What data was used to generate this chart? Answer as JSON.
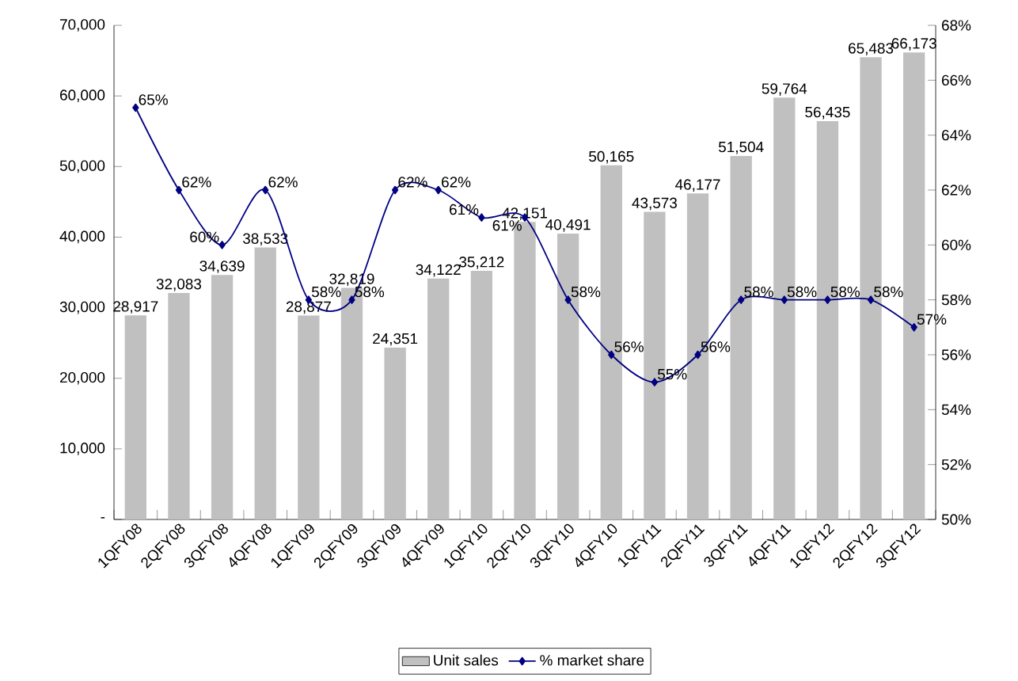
{
  "chart_data": {
    "type": "bar",
    "categories": [
      "1QFY08",
      "2QFY08",
      "3QFY08",
      "4QFY08",
      "1QFY09",
      "2QFY09",
      "3QFY09",
      "4QFY09",
      "1QFY10",
      "2QFY10",
      "3QFY10",
      "4QFY10",
      "1QFY11",
      "2QFY11",
      "3QFY11",
      "4QFY11",
      "1QFY12",
      "2QFY12",
      "3QFY12"
    ],
    "series": [
      {
        "name": "Unit sales",
        "color": "#c0c0c0",
        "values": [
          28917,
          32083,
          34639,
          38533,
          28877,
          32819,
          24351,
          34122,
          35212,
          42151,
          40491,
          50165,
          43573,
          46177,
          51504,
          59764,
          56435,
          65483,
          66173
        ],
        "value_labels": [
          "28,917",
          "32,083",
          "34,639",
          "38,533",
          "28,877",
          "32,819",
          "24,351",
          "34,122",
          "35,212",
          "42,151",
          "40,491",
          "50,165",
          "43,573",
          "46,177",
          "51,504",
          "59,764",
          "56,435",
          "65,483",
          "66,173"
        ]
      },
      {
        "name": "% market share",
        "type": "line",
        "axis": "y2",
        "color": "#000080",
        "marker": "diamond",
        "line_style": "solid",
        "values": [
          65,
          62,
          60,
          62,
          58,
          58,
          62,
          62,
          61,
          61,
          58,
          56,
          55,
          56,
          58,
          58,
          58,
          58,
          57
        ],
        "value_labels": [
          "65%",
          "62%",
          "60%",
          "62%",
          "58%",
          "58%",
          "62%",
          "62%",
          "61%",
          "61%",
          "58%",
          "56%",
          "55%",
          "56%",
          "58%",
          "58%",
          "58%",
          "58%",
          "57%"
        ]
      }
    ],
    "ylim": [
      0,
      70000
    ],
    "yticks": [
      {
        "value": 0,
        "label": "-"
      },
      {
        "value": 10000,
        "label": "10,000"
      },
      {
        "value": 20000,
        "label": "20,000"
      },
      {
        "value": 30000,
        "label": "30,000"
      },
      {
        "value": 40000,
        "label": "40,000"
      },
      {
        "value": 50000,
        "label": "50,000"
      },
      {
        "value": 60000,
        "label": "60,000"
      },
      {
        "value": 70000,
        "label": "70,000"
      }
    ],
    "y2lim": [
      50,
      68
    ],
    "y2ticks": [
      {
        "value": 50,
        "label": "50%"
      },
      {
        "value": 52,
        "label": "52%"
      },
      {
        "value": 54,
        "label": "54%"
      },
      {
        "value": 56,
        "label": "56%"
      },
      {
        "value": 58,
        "label": "58%"
      },
      {
        "value": 60,
        "label": "60%"
      },
      {
        "value": 62,
        "label": "62%"
      },
      {
        "value": 64,
        "label": "64%"
      },
      {
        "value": 66,
        "label": "66%"
      },
      {
        "value": 68,
        "label": "68%"
      }
    ],
    "legend": "bottom"
  }
}
